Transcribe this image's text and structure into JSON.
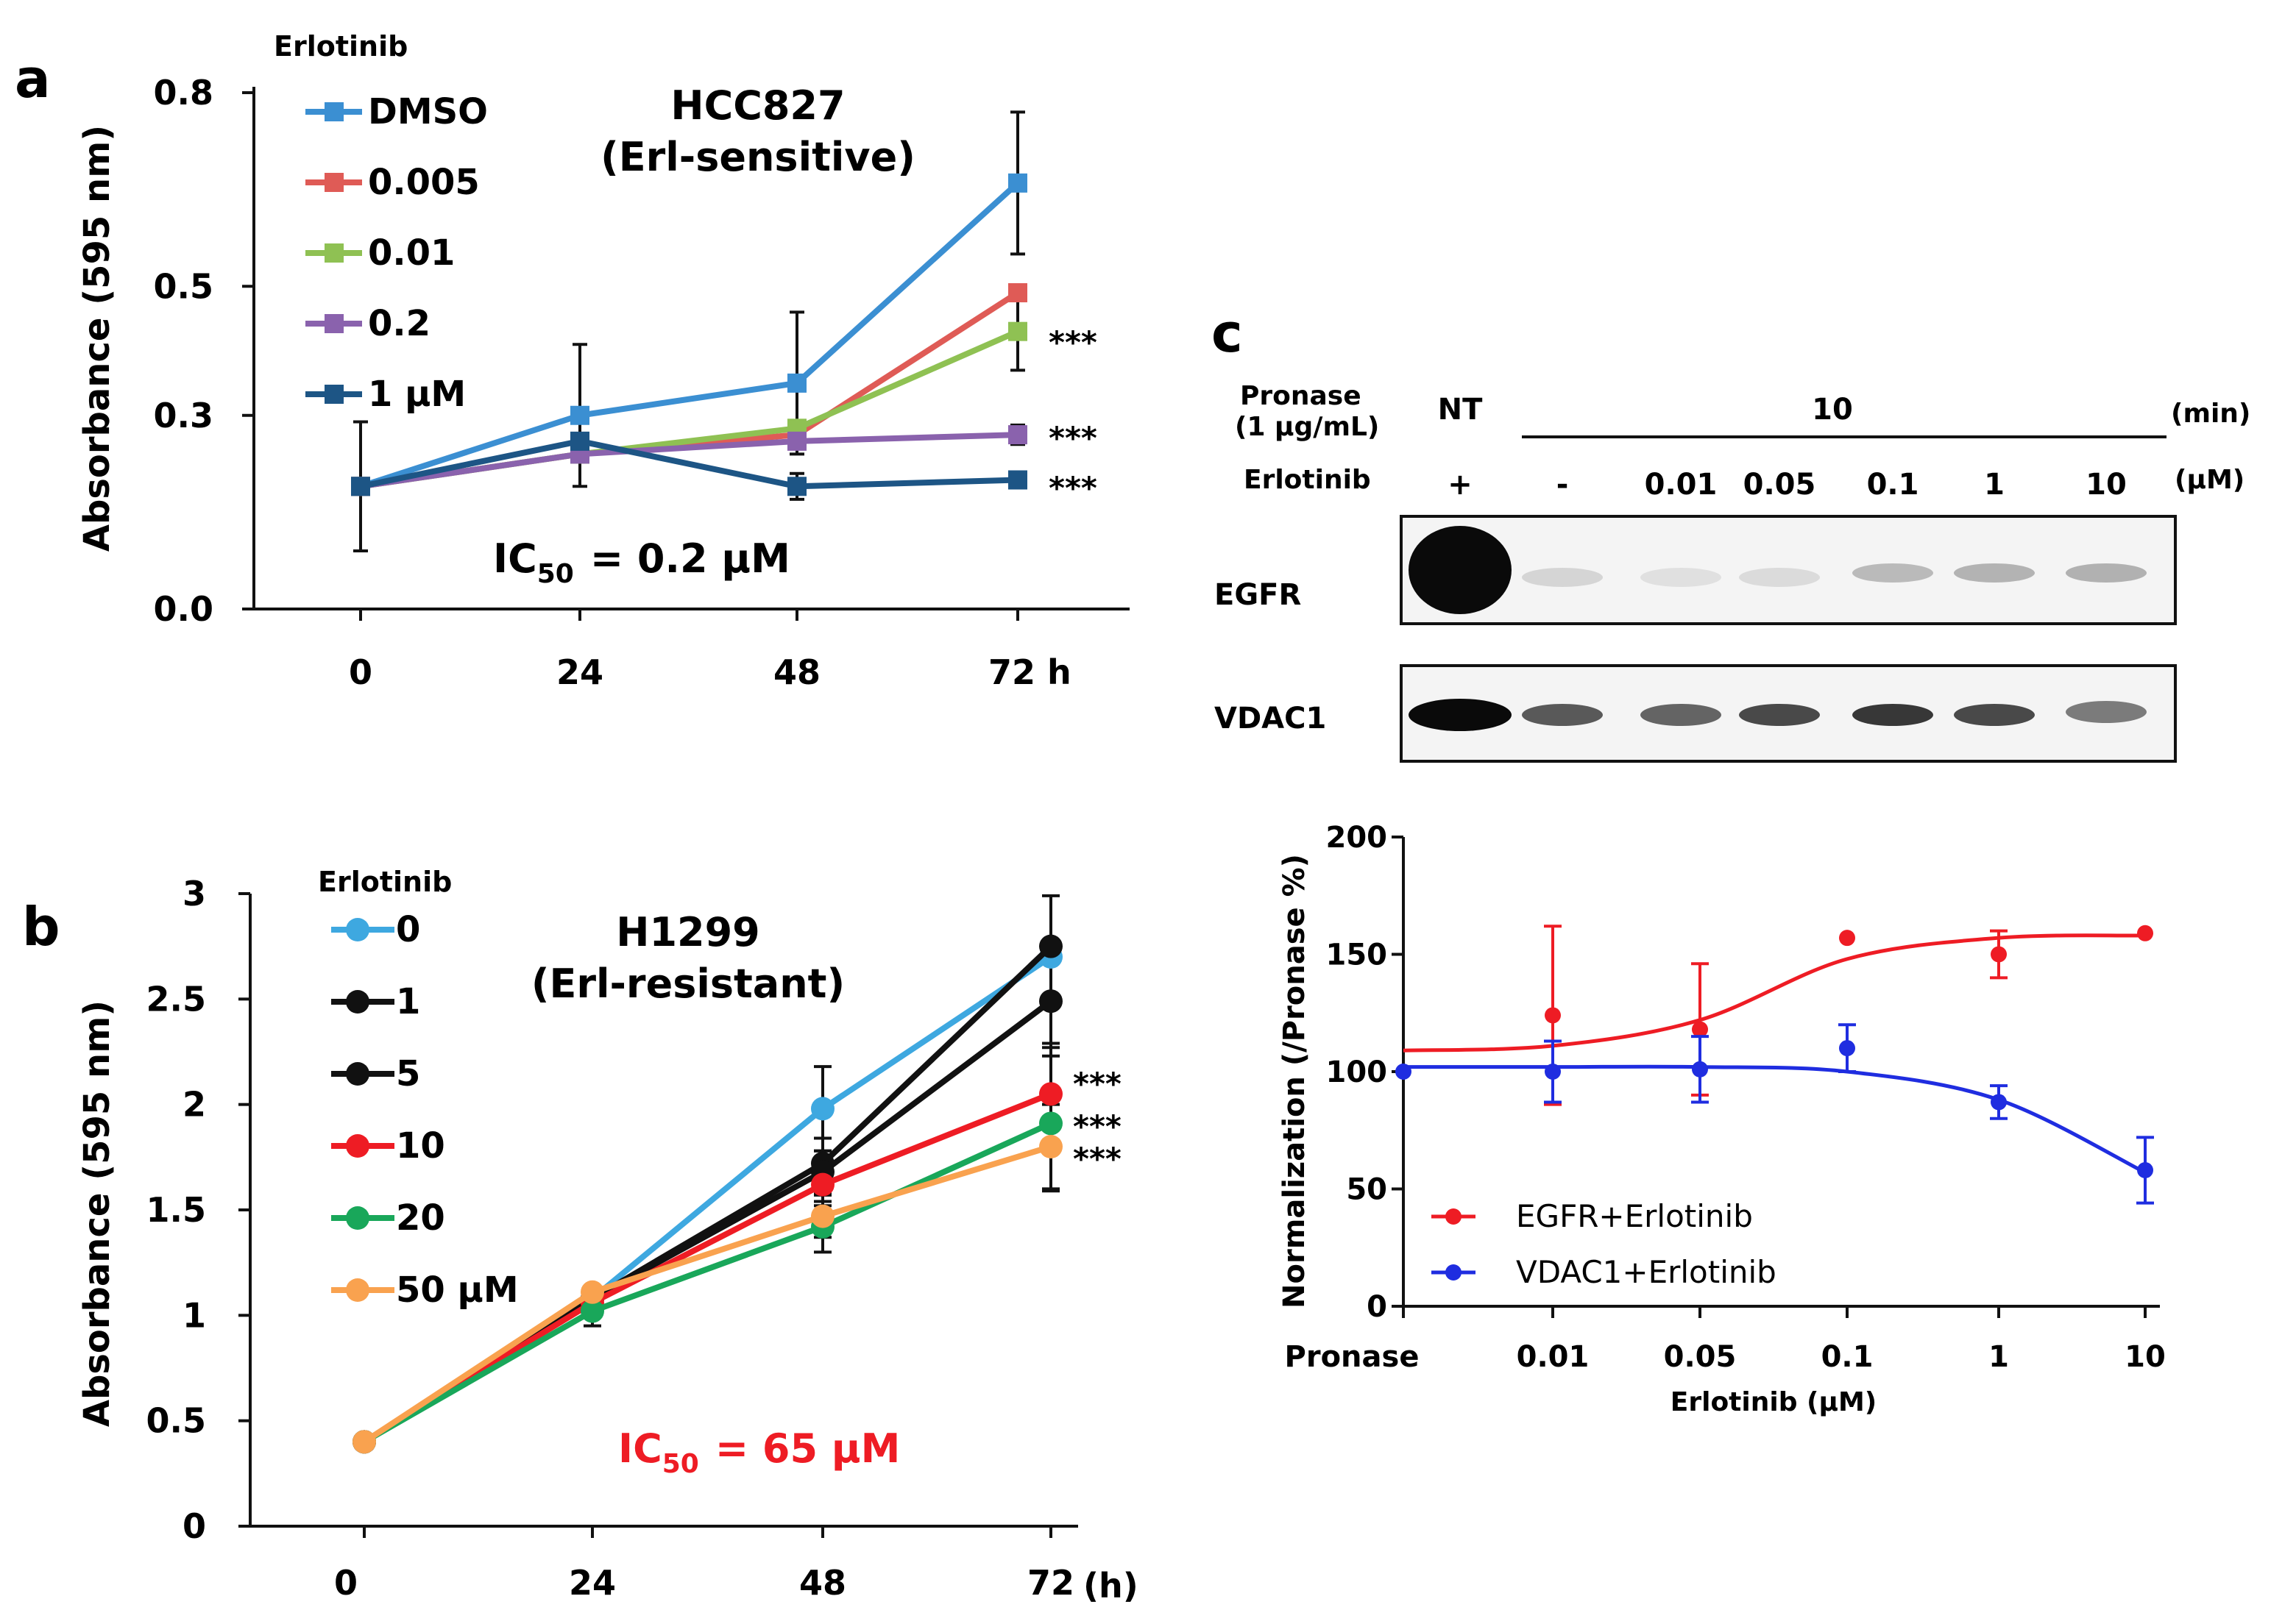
{
  "panels": {
    "a": "a",
    "b": "b",
    "c": "c"
  },
  "chart_data": [
    {
      "id": "a",
      "type": "line",
      "ylabel": "Absorbance (595 nm)",
      "yticks": [
        "0.0",
        "0.3",
        "0.5",
        "0.8"
      ],
      "ytick_values": [
        0.0,
        0.3,
        0.5,
        0.8
      ],
      "ylim": [
        0,
        0.8
      ],
      "xticks": [
        "0",
        "24",
        "48",
        "72 h"
      ],
      "x": [
        0,
        24,
        48,
        72
      ],
      "legend_title": "Erlotinib",
      "cell_line": "HCC827",
      "cell_note": "(Erl-sensitive)",
      "ic50_prefix": "IC",
      "ic50_sub": "50",
      "ic50_value": "= 0.2 µM",
      "series": [
        {
          "name": "DMSO",
          "color": "#3b8fd2",
          "values": [
            0.19,
            0.3,
            0.35,
            0.66
          ],
          "err": [
            0.0,
            0.11,
            0.11,
            0.11
          ]
        },
        {
          "name": "0.005",
          "color": "#df5b56",
          "values": [
            0.19,
            0.24,
            0.27,
            0.49
          ],
          "err": [
            0.0,
            0.0,
            0.0,
            0.0
          ]
        },
        {
          "name": "0.01",
          "color": "#8fc153",
          "values": [
            0.19,
            0.24,
            0.28,
            0.43
          ],
          "err": [
            0.0,
            0.0,
            0.0,
            0.06
          ]
        },
        {
          "name": "0.2",
          "color": "#8a62ad",
          "values": [
            0.19,
            0.24,
            0.26,
            0.27
          ],
          "err": [
            0.0,
            0.0,
            0.0,
            0.015
          ]
        },
        {
          "name": "1 µM",
          "color": "#1d5585",
          "values": [
            0.19,
            0.26,
            0.19,
            0.2
          ],
          "err": [
            0.1,
            0.03,
            0.02,
            0.01
          ]
        }
      ],
      "significance": [
        "***",
        "***",
        "***"
      ]
    },
    {
      "id": "b",
      "type": "line",
      "ylabel": "Absorbance (595 nm)",
      "yticks": [
        "0",
        "0.5",
        "1",
        "1.5",
        "2",
        "2.5",
        "3"
      ],
      "ytick_values": [
        0,
        0.5,
        1,
        1.5,
        2,
        2.5,
        3
      ],
      "ylim": [
        0,
        3
      ],
      "xticks": [
        "0",
        "24",
        "48",
        "72"
      ],
      "x": [
        0,
        24,
        48,
        72
      ],
      "xunit": "(h)",
      "legend_title": "Erlotinib",
      "cell_line": "H1299",
      "cell_note": "(Erl-resistant)",
      "ic50_prefix": "IC",
      "ic50_sub": "50",
      "ic50_value": "= 65 µM",
      "series": [
        {
          "name": "0",
          "color": "#3ea8e0",
          "values": [
            0.4,
            1.08,
            1.98,
            2.7
          ],
          "err": [
            0,
            0,
            0.2,
            0
          ]
        },
        {
          "name": "1",
          "color": "#111111",
          "values": [
            0.4,
            1.08,
            1.72,
            2.75
          ],
          "err": [
            0,
            0,
            0.12,
            0.24
          ]
        },
        {
          "name": "5",
          "color": "#111111",
          "values": [
            0.4,
            1.08,
            1.68,
            2.49
          ],
          "err": [
            0,
            0,
            0.1,
            0.22
          ]
        },
        {
          "name": "10",
          "color": "#ee1c24",
          "values": [
            0.4,
            1.06,
            1.62,
            2.05
          ],
          "err": [
            0,
            0,
            0.1,
            0.24
          ]
        },
        {
          "name": "20",
          "color": "#19a75a",
          "values": [
            0.4,
            1.02,
            1.42,
            1.91
          ],
          "err": [
            0,
            0.07,
            0.12,
            0.32
          ]
        },
        {
          "name": "50 µM",
          "color": "#f9a24f",
          "values": [
            0.4,
            1.11,
            1.47,
            1.8
          ],
          "err": [
            0,
            0,
            0.1,
            0.2
          ]
        }
      ],
      "significance": [
        "***",
        "***",
        "***"
      ]
    },
    {
      "id": "c",
      "type": "scatter",
      "ylabel": "Normalization (/Pronase %)",
      "xlabel": "Erlotinib (µM)",
      "yticks": [
        "0",
        "50",
        "100",
        "150",
        "200"
      ],
      "ytick_values": [
        0,
        50,
        100,
        150,
        200
      ],
      "ylim": [
        0,
        200
      ],
      "xticks": [
        "Pronase",
        "0.01",
        "0.05",
        "0.1",
        "1",
        "10"
      ],
      "series": [
        {
          "name": "EGFR+Erlotinib",
          "color": "#ee1c24",
          "values": [
            null,
            124,
            118,
            157,
            150,
            159
          ],
          "err": [
            0,
            38,
            28,
            0,
            10,
            0
          ],
          "fit": [
            109,
            111,
            122,
            148,
            157,
            158
          ]
        },
        {
          "name": "VDAC1+Erlotinib",
          "color": "#1f2de0",
          "values": [
            100,
            100,
            101,
            110,
            87,
            58
          ],
          "err": [
            0,
            13,
            14,
            10,
            7,
            14
          ],
          "fit": [
            102,
            102,
            102,
            100,
            88,
            57
          ]
        }
      ]
    }
  ],
  "blot": {
    "pronase_label": "Pronase",
    "pronase_conc": "(1 µg/mL)",
    "nt_label": "NT",
    "time_value": "10",
    "time_unit": "(min)",
    "erlotinib_label": "Erlotinib",
    "dose_unit": "(µM)",
    "lanes": [
      "+",
      "-",
      "0.01",
      "0.05",
      "0.1",
      "1",
      "10"
    ],
    "egfr_label": "EGFR",
    "vdac_label": "VDAC1",
    "egfr_intensity": [
      1.0,
      0.1,
      0.05,
      0.07,
      0.22,
      0.25,
      0.26
    ],
    "vdac_intensity": [
      1.0,
      0.65,
      0.6,
      0.72,
      0.8,
      0.72,
      0.5
    ]
  }
}
